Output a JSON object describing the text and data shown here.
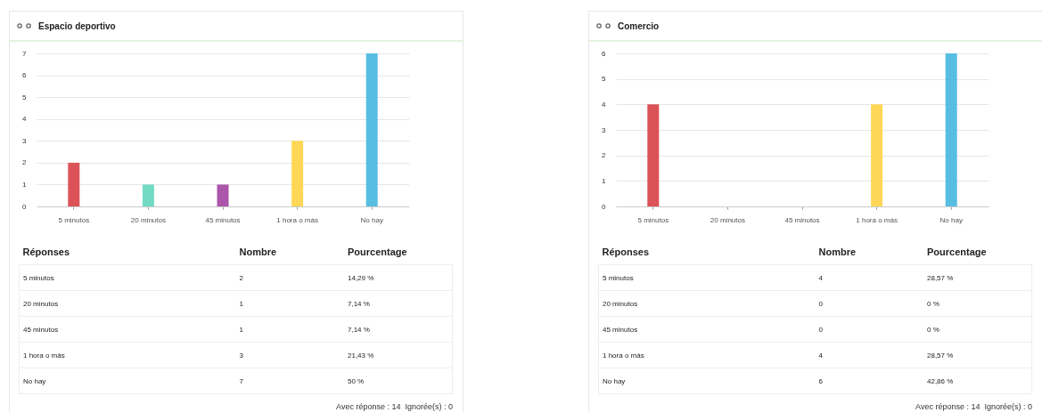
{
  "chart_data": [
    {
      "type": "bar",
      "title": "Espacio deportivo",
      "categories": [
        "5 minutos",
        "20 minutos",
        "45 minutos",
        "1 hora o más",
        "No hay"
      ],
      "values": [
        2,
        1,
        1,
        3,
        7
      ],
      "colors": [
        "#d94a4e",
        "#6bd8c1",
        "#a64ca6",
        "#ffd54f",
        "#4ebae0"
      ],
      "ylim": [
        0,
        7
      ],
      "yticks": [
        0,
        1,
        2,
        3,
        4,
        5,
        6,
        7
      ],
      "grid": "y",
      "annotations": [
        "Réponses",
        "Nombre",
        "Pourcentage",
        "2",
        "14,29 %",
        "1",
        "7,14 %",
        "1",
        "7,14 %",
        "3",
        "21,43 %",
        "7",
        "50 %",
        "Avec réponse : 14  Ignorée(s) : 0"
      ]
    },
    {
      "type": "bar",
      "title": "Comercio",
      "categories": [
        "5 minutos",
        "20 minutos",
        "45 minutos",
        "1 hora o más",
        "No hay"
      ],
      "values": [
        4,
        0,
        0,
        4,
        6
      ],
      "colors": [
        "#d94a4e",
        "#6bd8c1",
        "#a64ca6",
        "#ffd54f",
        "#4ebae0"
      ],
      "ylim": [
        0,
        6
      ],
      "yticks": [
        0,
        1,
        2,
        3,
        4,
        5,
        6
      ],
      "grid": "y",
      "annotations": [
        "Réponses",
        "Nombre",
        "Pourcentage",
        "4",
        "28,57 %",
        "0",
        "0 %",
        "0",
        "0 %",
        "4",
        "28,57 %",
        "6",
        "42,86 %",
        "Avec réponse : 14  Ignorée(s) : 0"
      ]
    }
  ]
}
